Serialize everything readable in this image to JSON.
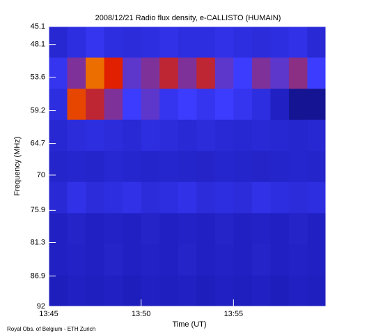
{
  "chart_data": {
    "type": "heatmap",
    "title": "2008/12/21  Radio flux density, e-CALLISTO (HUMAIN)",
    "x_label": "Time (UT)",
    "y_label": "Frequency (MHz)",
    "footer": "Royal Obs. of Belgium - ETH Zurich",
    "xlim": [
      "13:45",
      "14:00"
    ],
    "xticks": [
      "13:45",
      "13:50",
      "13:55"
    ],
    "ylim": [
      45.1,
      92.0
    ],
    "yticks": [
      45.1,
      48.1,
      53.6,
      59.2,
      64.7,
      70.0,
      75.9,
      81.3,
      86.9,
      92.0
    ],
    "colormap": [
      "#000010",
      "#1a1ab4",
      "#3c3cff",
      "#e02000",
      "#ffe000"
    ],
    "values": [
      [
        0.35,
        0.4,
        0.45,
        0.4,
        0.38,
        0.4,
        0.42,
        0.4,
        0.4,
        0.42,
        0.4,
        0.38,
        0.4,
        0.42,
        0.36
      ],
      [
        0.45,
        0.6,
        0.85,
        0.75,
        0.55,
        0.6,
        0.7,
        0.6,
        0.7,
        0.55,
        0.5,
        0.6,
        0.55,
        0.62,
        0.5
      ],
      [
        0.4,
        0.8,
        0.7,
        0.6,
        0.5,
        0.55,
        0.45,
        0.5,
        0.45,
        0.5,
        0.45,
        0.4,
        0.3,
        0.2,
        0.2
      ],
      [
        0.35,
        0.38,
        0.4,
        0.38,
        0.36,
        0.4,
        0.38,
        0.36,
        0.38,
        0.36,
        0.35,
        0.36,
        0.35,
        0.34,
        0.35
      ],
      [
        0.33,
        0.34,
        0.33,
        0.35,
        0.34,
        0.33,
        0.34,
        0.33,
        0.32,
        0.34,
        0.33,
        0.32,
        0.33,
        0.34,
        0.33
      ],
      [
        0.36,
        0.42,
        0.38,
        0.4,
        0.42,
        0.38,
        0.4,
        0.42,
        0.38,
        0.4,
        0.38,
        0.42,
        0.4,
        0.38,
        0.4
      ],
      [
        0.3,
        0.32,
        0.3,
        0.31,
        0.3,
        0.32,
        0.3,
        0.31,
        0.3,
        0.32,
        0.3,
        0.31,
        0.3,
        0.32,
        0.3
      ],
      [
        0.3,
        0.31,
        0.3,
        0.32,
        0.3,
        0.31,
        0.3,
        0.32,
        0.3,
        0.31,
        0.3,
        0.32,
        0.3,
        0.31,
        0.3
      ],
      [
        0.28,
        0.3,
        0.29,
        0.3,
        0.28,
        0.3,
        0.29,
        0.3,
        0.28,
        0.3,
        0.29,
        0.3,
        0.28,
        0.3,
        0.29
      ]
    ]
  }
}
